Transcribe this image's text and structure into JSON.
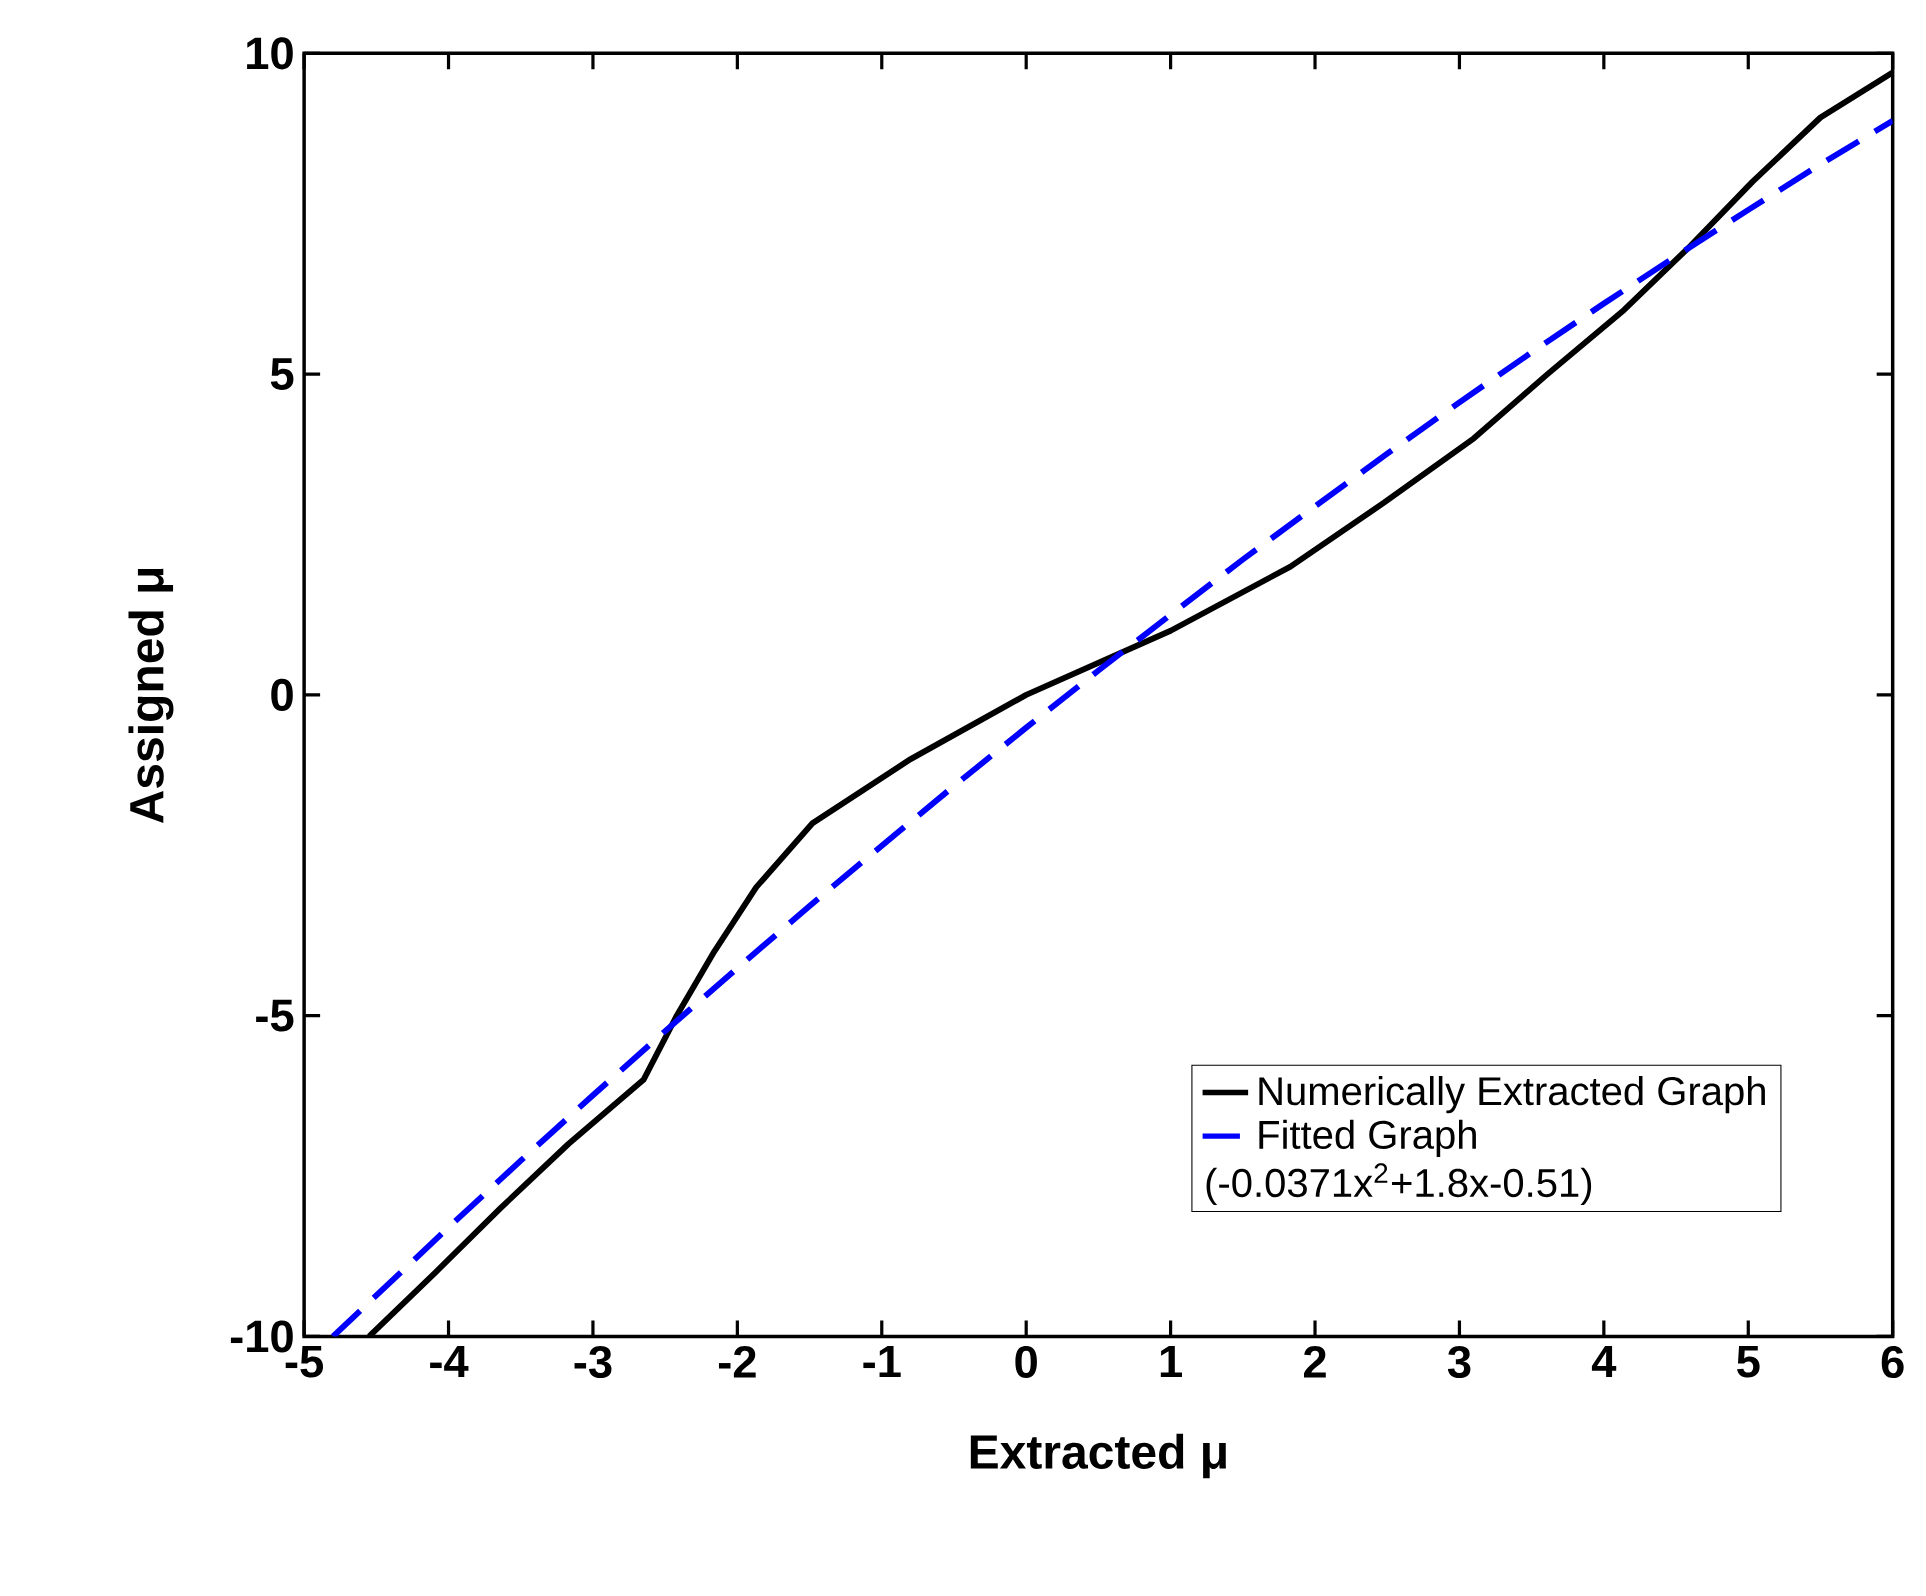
{
  "chart_data": {
    "type": "line",
    "xlabel": "Extracted μ",
    "ylabel": "Assigned μ",
    "xlim": [
      -5,
      6
    ],
    "ylim": [
      -10,
      10
    ],
    "xticks": [
      -5,
      -4,
      -3,
      -2,
      -1,
      0,
      1,
      2,
      3,
      4,
      5,
      6
    ],
    "yticks": [
      -10,
      -5,
      0,
      5,
      10
    ],
    "grid": false,
    "legend": "bottom right",
    "marker": "none",
    "annotations": [
      "(-0.0371x$^{2}$+1.8x-0.51)"
    ],
    "series": [
      {
        "name": "Numerically Extracted Graph",
        "color": "#000000",
        "line_style": "solid",
        "x": [
          -4.55,
          -4.09,
          -3.64,
          -3.17,
          -2.65,
          -2.42,
          -2.16,
          -1.87,
          -1.48,
          -0.8,
          0,
          1.0,
          1.83,
          2.48,
          3.1,
          3.61,
          4.14,
          4.6,
          5.03,
          5.5,
          6
        ],
        "values": [
          -10,
          -9,
          -8,
          -7,
          -6,
          -5,
          -4,
          -3,
          -2,
          -1,
          0,
          1,
          2,
          3,
          4,
          5,
          6,
          7,
          8,
          9,
          9.7
        ]
      },
      {
        "name": "Fitted Graph",
        "color": "#0000ff",
        "line_style": "dashed",
        "x": [
          -4.8,
          -4.5,
          -4,
          -3.5,
          -3,
          -2.5,
          -2,
          -1.5,
          -1,
          -0.5,
          0,
          0.5,
          1,
          1.5,
          2,
          2.5,
          3,
          3.5,
          4,
          4.5,
          5,
          5.5,
          6
        ],
        "values": [
          -10.0,
          -9.36,
          -8.3,
          -7.26,
          -6.24,
          -5.24,
          -4.26,
          -3.29,
          -2.35,
          -1.42,
          -0.51,
          0.38,
          1.25,
          2.11,
          2.94,
          3.76,
          4.56,
          5.34,
          6.1,
          6.84,
          7.56,
          8.27,
          8.95
        ]
      }
    ]
  }
}
